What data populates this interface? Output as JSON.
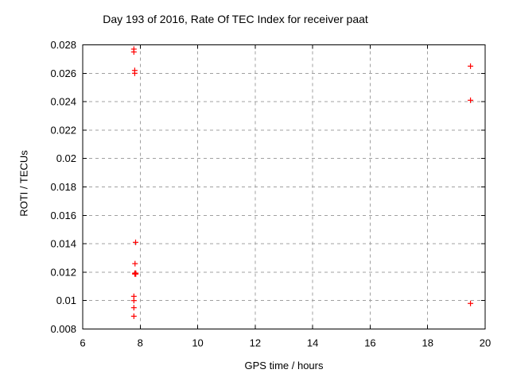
{
  "chart_data": {
    "type": "scatter",
    "title": "Day 193 of 2016, Rate Of TEC Index for receiver paat",
    "xlabel": "GPS time / hours",
    "ylabel": "ROTI / TECUs",
    "xlim": [
      6,
      20
    ],
    "ylim": [
      0.008,
      0.028
    ],
    "xticks": [
      6,
      8,
      10,
      12,
      14,
      16,
      18,
      20
    ],
    "xtick_labels": [
      "6",
      "8",
      "10",
      "12",
      "14",
      "16",
      "18",
      "20"
    ],
    "yticks": [
      0.008,
      0.01,
      0.012,
      0.014,
      0.016,
      0.018,
      0.02,
      0.022,
      0.024,
      0.026,
      0.028
    ],
    "ytick_labels": [
      "0.008",
      "0.01",
      "0.012",
      "0.014",
      "0.016",
      "0.018",
      "0.02",
      "0.022",
      "0.024",
      "0.026",
      "0.028"
    ],
    "grid": true,
    "legend": "none",
    "marker": "plus",
    "marker_color": "#ff0000",
    "grid_color": "#a0a0a0",
    "axis_color": "#000000",
    "series": [
      {
        "name": "ROTI",
        "points": [
          [
            7.78,
            0.0277
          ],
          [
            7.78,
            0.0275
          ],
          [
            7.81,
            0.0262
          ],
          [
            7.81,
            0.026
          ],
          [
            7.84,
            0.0141
          ],
          [
            7.82,
            0.0126
          ],
          [
            7.83,
            0.0119,
            1
          ],
          [
            7.78,
            0.0103
          ],
          [
            7.78,
            0.01
          ],
          [
            7.78,
            0.0095
          ],
          [
            7.78,
            0.0089
          ],
          [
            19.49,
            0.0265
          ],
          [
            19.49,
            0.0241
          ],
          [
            19.49,
            0.0098
          ]
        ]
      }
    ]
  }
}
